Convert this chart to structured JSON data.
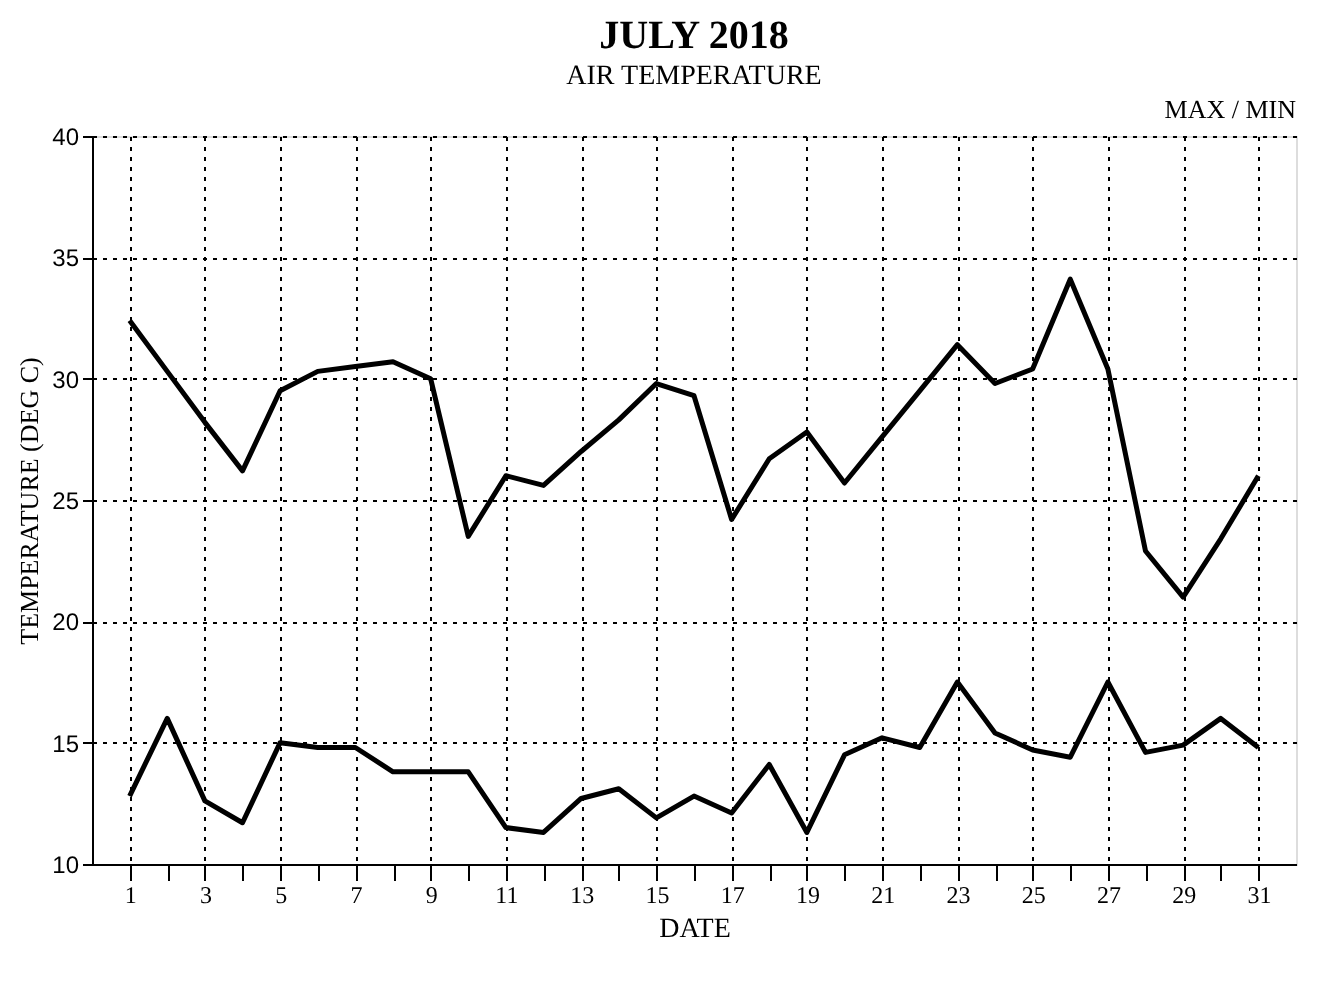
{
  "chart_data": {
    "type": "line",
    "title": "JULY 2018",
    "subtitle": "AIR TEMPERATURE",
    "xlabel": "DATE",
    "ylabel": "TEMPERATURE (DEG C)",
    "annotations": [
      "MAX / MIN"
    ],
    "x": [
      1,
      2,
      3,
      4,
      5,
      6,
      7,
      8,
      9,
      10,
      11,
      12,
      13,
      14,
      15,
      16,
      17,
      18,
      19,
      20,
      21,
      22,
      23,
      24,
      25,
      26,
      27,
      28,
      29,
      30,
      31
    ],
    "series": [
      {
        "color": "#000000",
        "values": [
          32.4,
          30.3,
          28.2,
          26.2,
          29.5,
          30.3,
          30.5,
          30.7,
          30.0,
          23.5,
          26.0,
          25.6,
          27.0,
          28.3,
          29.8,
          29.3,
          24.2,
          26.7,
          27.8,
          25.7,
          27.6,
          29.5,
          31.4,
          29.8,
          30.4,
          34.1,
          30.4,
          22.9,
          21.0,
          23.4,
          26.0
        ]
      },
      {
        "color": "#000000",
        "values": [
          12.8,
          16.0,
          12.6,
          11.7,
          15.0,
          14.8,
          14.8,
          13.8,
          13.8,
          13.8,
          11.5,
          11.3,
          12.7,
          13.1,
          11.9,
          12.8,
          12.1,
          14.1,
          11.3,
          14.5,
          15.2,
          14.8,
          17.5,
          15.4,
          14.7,
          14.4,
          17.5,
          14.6,
          14.9,
          16.0,
          14.8
        ]
      }
    ],
    "xlim": [
      0,
      32
    ],
    "xticks": [
      1,
      {
        "value": 2,
        "label": null
      },
      3,
      {
        "value": 4,
        "label": null
      },
      5,
      {
        "value": 6,
        "label": null
      },
      7,
      {
        "value": 8,
        "label": null
      },
      9,
      {
        "value": 10,
        "label": null
      },
      11,
      {
        "value": 12,
        "label": null
      },
      13,
      {
        "value": 14,
        "label": null
      },
      15,
      {
        "value": 16,
        "label": null
      },
      17,
      {
        "value": 18,
        "label": null
      },
      19,
      {
        "value": 20,
        "label": null
      },
      21,
      {
        "value": 22,
        "label": null
      },
      23,
      {
        "value": 24,
        "label": null
      },
      25,
      {
        "value": 26,
        "label": null
      },
      27,
      {
        "value": 28,
        "label": null
      },
      29,
      {
        "value": 30,
        "label": null
      },
      31
    ],
    "ylim": [
      10,
      40
    ],
    "yticks": [
      10,
      15,
      20,
      25,
      30,
      35,
      40
    ],
    "grid": true,
    "marker": "none",
    "line_style": "solid",
    "legend": false
  }
}
